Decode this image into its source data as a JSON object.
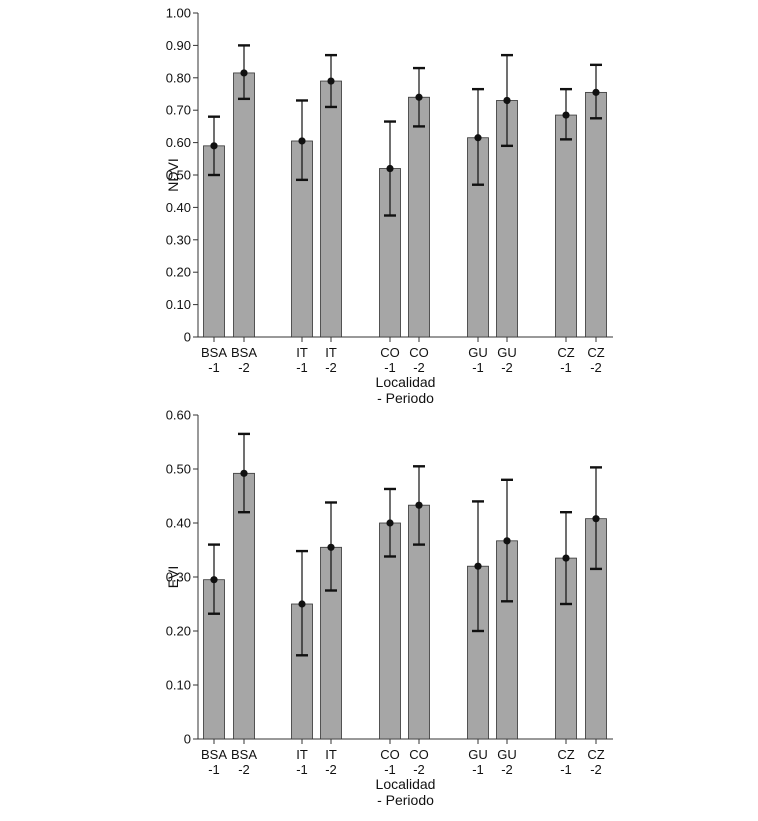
{
  "chart_data": [
    {
      "type": "bar",
      "ylabel": "NDVI",
      "xlabel_lines": [
        "Localidad",
        "- Periodo"
      ],
      "ylim": [
        0,
        1.0
      ],
      "yticks": [
        "0",
        "0.10",
        "0.20",
        "0.30",
        "0.40",
        "0.50",
        "0.60",
        "0.70",
        "0.80",
        "0.90",
        "1.00"
      ],
      "categories": [
        [
          "BSA",
          "-1"
        ],
        [
          "BSA",
          "-2"
        ],
        [
          "IT",
          "-1"
        ],
        [
          "IT",
          "-2"
        ],
        [
          "CO",
          "-1"
        ],
        [
          "CO",
          "-2"
        ],
        [
          "GU",
          "-1"
        ],
        [
          "GU",
          "-2"
        ],
        [
          "CZ",
          "-1"
        ],
        [
          "CZ",
          "-2"
        ]
      ],
      "values": [
        0.59,
        0.815,
        0.605,
        0.79,
        0.52,
        0.74,
        0.615,
        0.73,
        0.685,
        0.755
      ],
      "error_low": [
        0.5,
        0.735,
        0.485,
        0.71,
        0.375,
        0.65,
        0.47,
        0.59,
        0.61,
        0.675
      ],
      "error_high": [
        0.68,
        0.9,
        0.73,
        0.87,
        0.665,
        0.83,
        0.765,
        0.87,
        0.765,
        0.84
      ],
      "grid": false,
      "bar_color": "#a6a6a6"
    },
    {
      "type": "bar",
      "ylabel": "EVI",
      "xlabel_lines": [
        "Localidad",
        "- Periodo"
      ],
      "ylim": [
        0,
        0.6
      ],
      "yticks": [
        "0",
        "0.10",
        "0.20",
        "0.30",
        "0.40",
        "0.50",
        "0.60"
      ],
      "categories": [
        [
          "BSA",
          "-1"
        ],
        [
          "BSA",
          "-2"
        ],
        [
          "IT",
          "-1"
        ],
        [
          "IT",
          "-2"
        ],
        [
          "CO",
          "-1"
        ],
        [
          "CO",
          "-2"
        ],
        [
          "GU",
          "-1"
        ],
        [
          "GU",
          "-2"
        ],
        [
          "CZ",
          "-1"
        ],
        [
          "CZ",
          "-2"
        ]
      ],
      "values": [
        0.295,
        0.492,
        0.25,
        0.355,
        0.4,
        0.433,
        0.32,
        0.367,
        0.335,
        0.408
      ],
      "error_low": [
        0.232,
        0.42,
        0.155,
        0.275,
        0.338,
        0.36,
        0.2,
        0.255,
        0.25,
        0.315
      ],
      "error_high": [
        0.36,
        0.565,
        0.348,
        0.438,
        0.463,
        0.505,
        0.44,
        0.48,
        0.42,
        0.503
      ],
      "grid": false,
      "bar_color": "#a6a6a6"
    }
  ]
}
